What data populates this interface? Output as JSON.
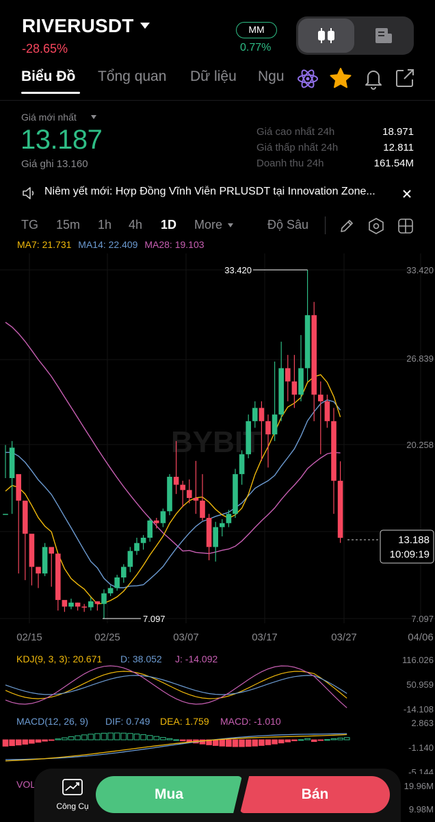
{
  "header": {
    "symbol": "RIVERUSDT",
    "change": "-28.65%",
    "mm_label": "MM",
    "mm_value": "0.77%"
  },
  "tabs": [
    {
      "label": "Biểu Đồ",
      "active": true
    },
    {
      "label": "Tổng quan"
    },
    {
      "label": "Dữ liệu"
    },
    {
      "label": "Ngu"
    }
  ],
  "price": {
    "latest_label": "Giá mới nhất",
    "last": "13.187",
    "mark": "Giá ghi 13.160",
    "stats": [
      {
        "label": "Giá cao nhất 24h",
        "value": "18.971"
      },
      {
        "label": "Giá thấp nhất 24h",
        "value": "12.811"
      },
      {
        "label": "Doanh thu 24h",
        "value": "161.54M"
      }
    ]
  },
  "announcement": "Niêm yết mới: Hợp Đồng Vĩnh Viễn PRLUSDT tại Innovation Zone...",
  "timeframes": [
    "TG",
    "15m",
    "1h",
    "4h",
    "1D",
    "More"
  ],
  "depth_label": "Độ Sâu",
  "ma": {
    "ma7": "MA7: 21.731",
    "ma14": "MA14: 22.409",
    "ma28": "MA28: 19.103"
  },
  "colors": {
    "up": "#2ebd85",
    "down": "#f6465d",
    "ma7": "#f0b90b",
    "ma14": "#6c9bd2",
    "ma28": "#c85fb3"
  },
  "chart_data": {
    "type": "candlestick",
    "price_axis": [
      "33.420",
      "26.839",
      "20.258",
      "7.097"
    ],
    "x_axis": [
      "02/15",
      "02/25",
      "03/07",
      "03/17",
      "03/27",
      "04/06"
    ],
    "high_marker": "33.420",
    "low_marker": "7.097",
    "current_price": "13.188",
    "countdown": "10:09:19",
    "watermark": "BYBIT",
    "candles": [
      [
        15.0,
        15.0,
        20.2,
        17.7
      ],
      [
        17.7,
        20.0,
        20.5,
        15.0
      ],
      [
        18.0,
        16.0,
        16.2,
        10.5
      ],
      [
        16.0,
        13.5,
        13.8,
        10.0
      ],
      [
        13.5,
        11.0,
        11.2,
        9.6
      ],
      [
        11.0,
        10.5,
        10.8,
        9.4
      ],
      [
        10.5,
        12.5,
        12.8,
        10.3
      ],
      [
        12.5,
        12.0,
        12.3,
        9.5
      ],
      [
        12.0,
        8.5,
        8.8,
        7.7
      ],
      [
        8.5,
        8.0,
        8.3,
        7.6
      ],
      [
        8.0,
        8.3,
        8.6,
        7.8
      ],
      [
        8.3,
        8.0,
        8.3,
        7.7
      ],
      [
        8.0,
        7.95,
        8.2,
        7.6
      ],
      [
        7.95,
        8.4,
        8.7,
        7.7
      ],
      [
        8.4,
        8.2,
        8.4,
        7.7
      ],
      [
        8.2,
        9.0,
        9.3,
        7.1
      ],
      [
        9.0,
        9.4,
        9.6,
        8.8
      ],
      [
        9.4,
        10.2,
        10.4,
        9.2
      ],
      [
        10.2,
        11.0,
        11.2,
        9.8
      ],
      [
        11.0,
        12.2,
        12.5,
        10.6
      ],
      [
        12.2,
        12.8,
        13.2,
        11.9
      ],
      [
        12.8,
        13.2,
        13.4,
        12.3
      ],
      [
        13.2,
        14.5,
        14.7,
        12.9
      ],
      [
        14.5,
        14.3,
        14.7,
        13.9
      ],
      [
        14.3,
        15.2,
        15.4,
        14.0
      ],
      [
        15.2,
        17.8,
        18.0,
        14.9
      ],
      [
        17.8,
        17.2,
        20.5,
        16.5
      ],
      [
        17.2,
        16.8,
        17.5,
        15.5
      ],
      [
        16.8,
        16.2,
        17.6,
        15.8
      ],
      [
        16.2,
        16.0,
        19.0,
        15.0
      ],
      [
        16.0,
        14.7,
        18.0,
        14.5
      ],
      [
        14.7,
        12.5,
        15.0,
        11.5
      ],
      [
        12.5,
        14.0,
        14.4,
        11.4
      ],
      [
        14.0,
        14.3,
        14.6,
        13.3
      ],
      [
        14.3,
        15.0,
        15.3,
        14.0
      ],
      [
        15.0,
        18.0,
        18.4,
        14.7
      ],
      [
        18.0,
        19.5,
        19.8,
        17.2
      ],
      [
        19.5,
        22.0,
        22.5,
        19.2
      ],
      [
        22.0,
        23.0,
        23.5,
        21.5
      ],
      [
        23.0,
        22.0,
        23.5,
        19.0
      ],
      [
        22.0,
        21.0,
        22.5,
        18.5
      ],
      [
        21.0,
        22.5,
        26.5,
        20.5
      ],
      [
        22.5,
        26.0,
        28.0,
        22.0
      ],
      [
        26.0,
        25.0,
        27.0,
        23.5
      ],
      [
        25.0,
        24.0,
        27.0,
        23.0
      ],
      [
        24.0,
        26.0,
        28.5,
        23.5
      ],
      [
        26.0,
        30.0,
        33.42,
        25.0
      ],
      [
        30.0,
        24.0,
        31.0,
        22.0
      ],
      [
        24.0,
        23.5,
        25.0,
        19.5
      ],
      [
        23.5,
        22.0,
        24.0,
        21.5
      ],
      [
        22.0,
        17.5,
        23.0,
        15.0
      ],
      [
        17.5,
        13.19,
        18.97,
        12.81
      ]
    ]
  },
  "indicators": {
    "kdj": {
      "label": "KDJ(9, 3, 3): 20.671",
      "d": "D: 38.052",
      "j": "J: -14.092",
      "axis": [
        "116.026",
        "50.959",
        "-14.108"
      ]
    },
    "macd": {
      "label": "MACD(12, 26, 9)",
      "dif": "DIF: 0.749",
      "dea": "DEA: 1.759",
      "macd": "MACD: -1.010",
      "axis": [
        "2.863",
        "-1.140",
        "-5.144"
      ]
    },
    "vol": {
      "label": "VOL",
      "axis": [
        "19.96M",
        "9.98M"
      ]
    }
  },
  "bottom": {
    "tools_label": "Công Cụ",
    "buy_label": "Mua",
    "sell_label": "Bán"
  }
}
